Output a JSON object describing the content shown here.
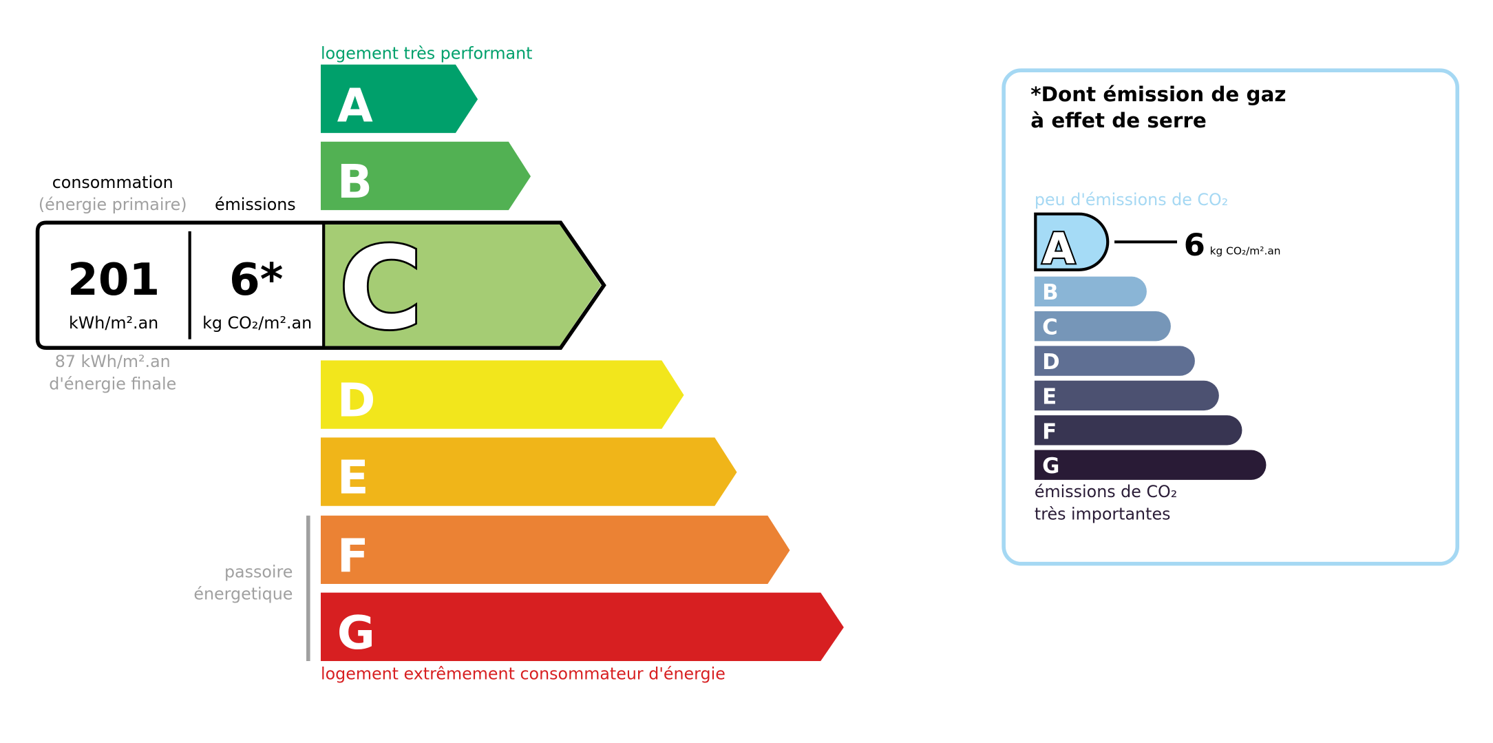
{
  "dpe": {
    "top_label": "logement très performant",
    "bottom_label": "logement extrêmement consommateur d'énergie",
    "passoire_line1": "passoire",
    "passoire_line2": "énergetique",
    "classes": [
      {
        "letter": "A",
        "color": "#00a06b"
      },
      {
        "letter": "B",
        "color": "#52b153"
      },
      {
        "letter": "C",
        "color": "#a5cc74"
      },
      {
        "letter": "D",
        "color": "#f2e61c"
      },
      {
        "letter": "E",
        "color": "#f0b519"
      },
      {
        "letter": "F",
        "color": "#eb8234"
      },
      {
        "letter": "G",
        "color": "#d71f21"
      }
    ],
    "current_class": "C",
    "consumption_label": "consommation",
    "consumption_sublabel": "(énergie primaire)",
    "emissions_label": "émissions",
    "consumption_value": "201",
    "consumption_unit": "kWh/m².an",
    "emissions_value": "6*",
    "emissions_unit": "kg CO₂/m².an",
    "final_energy_value": "87 kWh/m².an",
    "final_energy_label": "d'énergie finale"
  },
  "ges": {
    "title_line1": "*Dont émission de gaz",
    "title_line2": "à effet de serre",
    "top_label": "peu d'émissions de CO₂",
    "bottom_label_line1": "émissions de CO₂",
    "bottom_label_line2": "très importantes",
    "current_class": "A",
    "value": "6",
    "unit": "kg CO₂/m².an",
    "border_color": "#a5d8f3",
    "classes": [
      {
        "letter": "A",
        "color": "#a5dbf6"
      },
      {
        "letter": "B",
        "color": "#8ab5d6"
      },
      {
        "letter": "C",
        "color": "#7696b8"
      },
      {
        "letter": "D",
        "color": "#5f6f93"
      },
      {
        "letter": "E",
        "color": "#4c5171"
      },
      {
        "letter": "F",
        "color": "#383552"
      },
      {
        "letter": "G",
        "color": "#291b36"
      }
    ]
  }
}
